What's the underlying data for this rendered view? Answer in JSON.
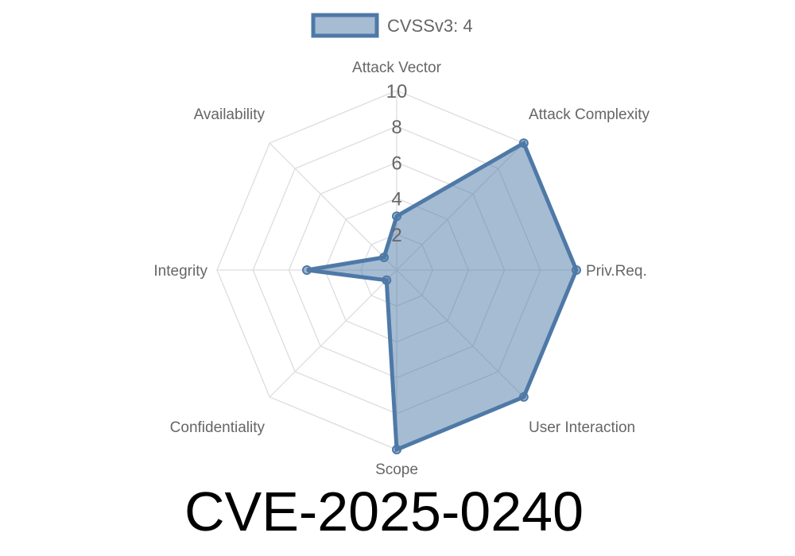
{
  "title": "CVE-2025-0240",
  "colors": {
    "series_fill": "#4e79a7",
    "series_stroke": "#4e79a7",
    "grid": "#dddddd",
    "text": "#666666"
  },
  "chart_data": {
    "type": "radar",
    "axes": [
      "Attack Vector",
      "Attack Complexity",
      "Priv.Req.",
      "User Interaction",
      "Scope",
      "Confidentiality",
      "Integrity",
      "Availability"
    ],
    "r_ticks": [
      "2",
      "4",
      "6",
      "8",
      "10"
    ],
    "r_range": [
      0,
      10
    ],
    "grid": true,
    "legend_position": "top",
    "series": [
      {
        "name": "CVSSv3: 4",
        "values": [
          3.0,
          10.0,
          10.0,
          10.0,
          10.0,
          0.8,
          5.0,
          1.0
        ]
      }
    ]
  }
}
